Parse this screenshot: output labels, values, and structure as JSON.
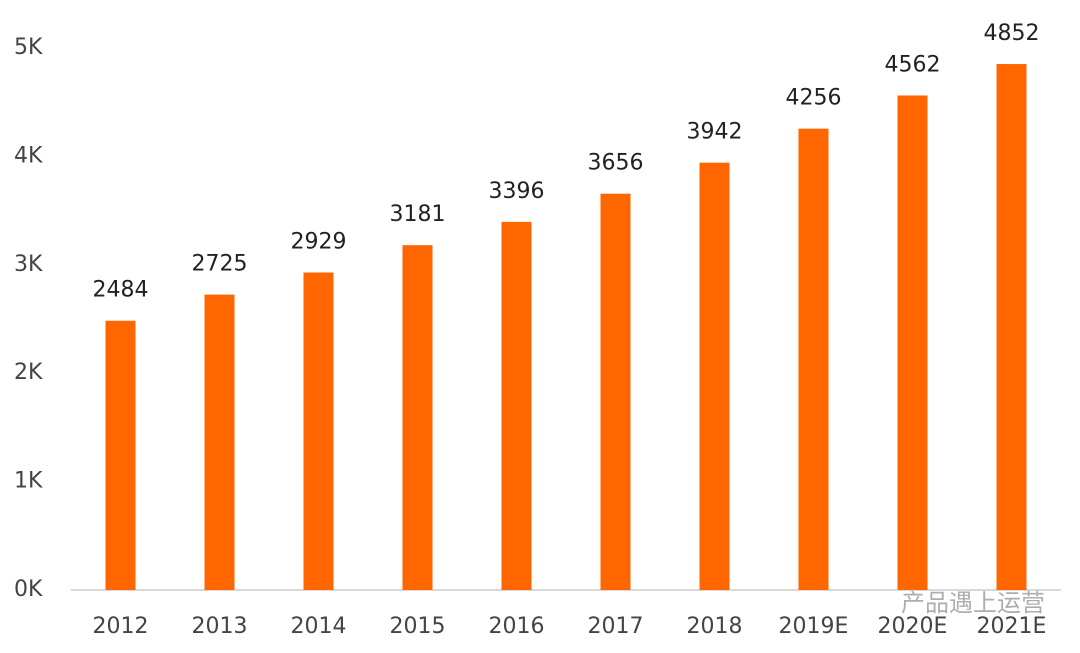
{
  "chart_data": {
    "type": "bar",
    "categories": [
      "2012",
      "2013",
      "2014",
      "2015",
      "2016",
      "2017",
      "2018",
      "2019E",
      "2020E",
      "2021E"
    ],
    "values": [
      2484,
      2725,
      2929,
      3181,
      3396,
      3656,
      3942,
      4256,
      4562,
      4852
    ],
    "color": "#ff6600",
    "ylim": [
      0,
      5000
    ],
    "yticks": [
      {
        "value": 0,
        "label": "0K"
      },
      {
        "value": 1000,
        "label": "1K"
      },
      {
        "value": 2000,
        "label": "2K"
      },
      {
        "value": 3000,
        "label": "3K"
      },
      {
        "value": 4000,
        "label": "4K"
      },
      {
        "value": 5000,
        "label": "5K"
      }
    ],
    "grid": false,
    "watermark": "产品遇上运营"
  }
}
